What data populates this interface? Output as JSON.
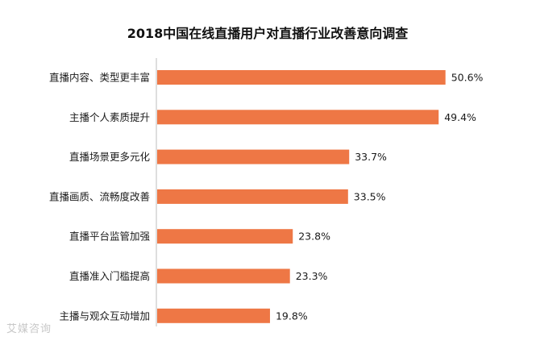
{
  "chart_data": {
    "type": "bar",
    "orientation": "horizontal",
    "title": "2018中国在线直播用户对直播行业改善意向调查",
    "categories": [
      "直播内容、类型更丰富",
      "主播个人素质提升",
      "直播场景更多元化",
      "直播画质、流畅度改善",
      "直播平台监管加强",
      "直播准入门槛提高",
      "主播与观众互动增加"
    ],
    "values": [
      50.6,
      49.4,
      33.7,
      33.5,
      23.8,
      23.3,
      19.8
    ],
    "value_labels": [
      "50.6%",
      "49.4%",
      "33.7%",
      "33.5%",
      "23.8%",
      "23.3%",
      "19.8%"
    ],
    "unit": "%",
    "xlabel": "",
    "ylabel": "",
    "xlim": [
      0,
      58
    ],
    "grid": false,
    "legend": "none",
    "colors": {
      "bar": "#ee7745",
      "axis": "#bdbdbd",
      "text": "#1a1a1a"
    }
  },
  "watermark": "艾媒咨询"
}
